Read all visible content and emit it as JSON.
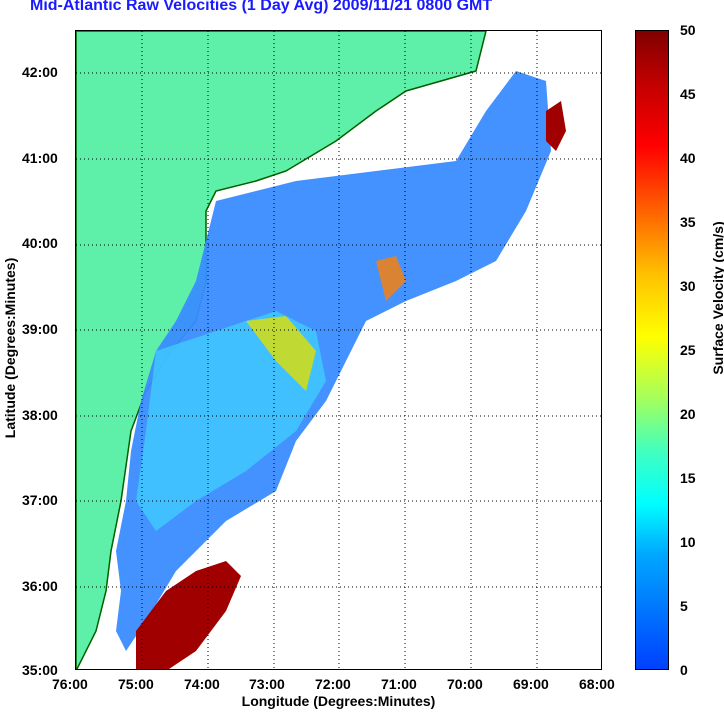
{
  "title": "Mid-Atlantic Raw Velocities (1 Day Avg) 2009/11/21 0800 GMT",
  "xlabel": "Longitude (Degrees:Minutes)",
  "ylabel": "Latitude (Degrees:Minutes)",
  "x_ticks": [
    "76:00",
    "75:00",
    "74:00",
    "73:00",
    "72:00",
    "71:00",
    "70:00",
    "69:00",
    "68:00"
  ],
  "y_ticks": [
    "42:00",
    "41:00",
    "40:00",
    "39:00",
    "38:00",
    "37:00",
    "36:00",
    "35:00"
  ],
  "colorbar": {
    "label": "Surface Velocity (cm/s)",
    "ticks": [
      "50",
      "45",
      "40",
      "35",
      "30",
      "25",
      "20",
      "15",
      "10",
      "5",
      "0"
    ],
    "range": [
      0,
      50
    ]
  },
  "colors": {
    "land": "#5ef0a8",
    "water_low": "#3090ff",
    "water_high": "#a00000",
    "title": "#1a1aff"
  }
}
